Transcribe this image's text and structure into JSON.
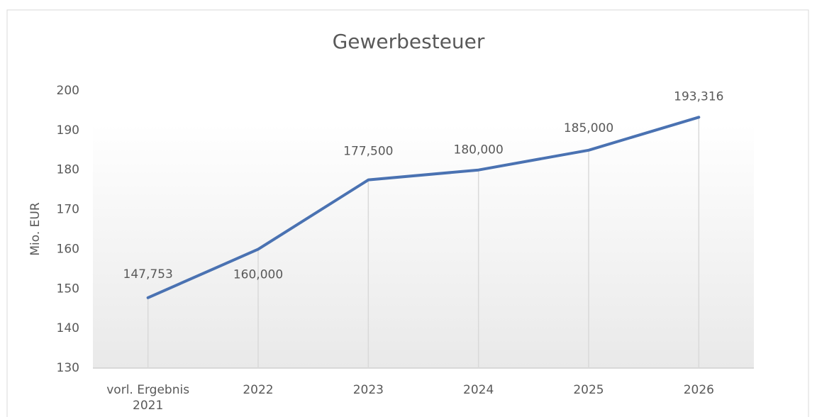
{
  "chart_data": {
    "type": "line",
    "title": "Gewerbesteuer",
    "y_label": "Mio. EUR",
    "categories": [
      "vorl. Ergebnis 2021",
      "2022",
      "2023",
      "2024",
      "2025",
      "2026"
    ],
    "series": [
      {
        "name": "Gewerbesteuer",
        "color": "#4a72b2",
        "values": [
          147.753,
          160.0,
          177.5,
          180.0,
          185.0,
          193.316
        ],
        "value_labels": [
          "147,753",
          "160,000",
          "177,500",
          "180,000",
          "185,000",
          "193,316"
        ]
      }
    ],
    "ylim": [
      130,
      200
    ],
    "yticks": [
      130,
      140,
      150,
      160,
      170,
      180,
      190,
      200
    ],
    "grid": true
  }
}
